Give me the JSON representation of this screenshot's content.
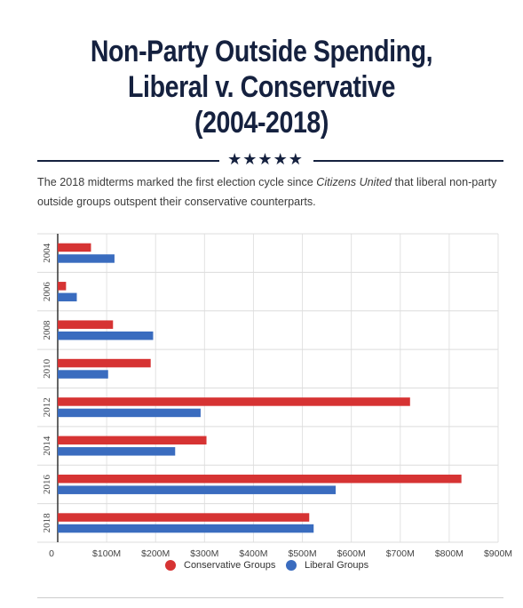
{
  "header": {
    "title_lines": [
      "Non-Party Outside Spending,",
      "Liberal v. Conservative",
      "(2004-2018)"
    ],
    "stars": "★★★★★",
    "subtitle_pre": "The 2018 midterms marked the first election cycle since ",
    "subtitle_italic": "Citizens United",
    "subtitle_post": " that liberal non-party outside groups outspent their conservative counterparts."
  },
  "chart_data": {
    "type": "bar",
    "orientation": "horizontal",
    "categories": [
      "2004",
      "2006",
      "2008",
      "2010",
      "2012",
      "2014",
      "2016",
      "2018"
    ],
    "series": [
      {
        "name": "Conservative Groups",
        "color": "#d63333",
        "values": [
          68,
          17,
          113,
          190,
          720,
          304,
          825,
          514
        ]
      },
      {
        "name": "Liberal Groups",
        "color": "#3a6cbf",
        "values": [
          116,
          39,
          195,
          103,
          292,
          240,
          568,
          523
        ]
      }
    ],
    "x_ticks": [
      "0",
      "$100M",
      "$200M",
      "$300M",
      "$400M",
      "$500M",
      "$600M",
      "$700M",
      "$800M",
      "$900M"
    ],
    "xlim": [
      0,
      900
    ],
    "grid": true,
    "legend_position": "bottom-center"
  },
  "colors": {
    "title": "#15213f",
    "conservative": "#d63333",
    "liberal": "#3a6cbf"
  }
}
